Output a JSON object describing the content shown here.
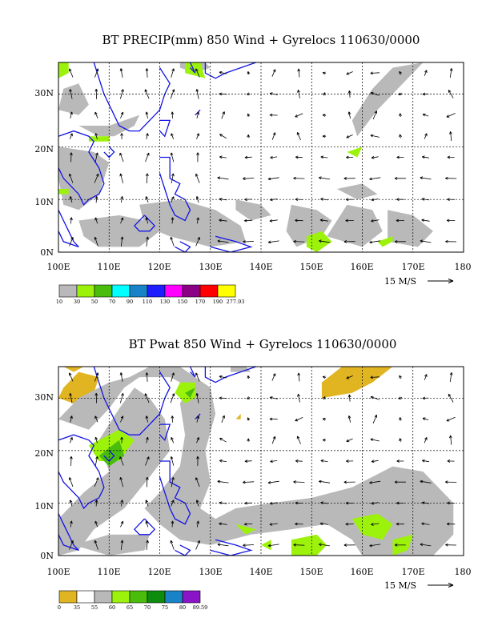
{
  "panels": [
    {
      "id": "precip",
      "title": "BT PRECIP(mm) 850 Wind + Gyrelocs 110630/0000",
      "x_ticks": [
        "100E",
        "110E",
        "120E",
        "130E",
        "140E",
        "150E",
        "160E",
        "170E",
        "180"
      ],
      "y_ticks": [
        "0N",
        "10N",
        "20N",
        "30N"
      ],
      "extent": {
        "lon": [
          100,
          180
        ],
        "lat": [
          0,
          36
        ]
      },
      "vector_ref": "15 M/S",
      "colorbar": {
        "colors": [
          "#b9b9b9",
          "#9df20b",
          "#49bc0c",
          "#00ffff",
          "#1a83c8",
          "#1e1eff",
          "#ff00ff",
          "#8b0085",
          "#ff0000",
          "#ffff00"
        ],
        "labels": [
          "10",
          "30",
          "50",
          "70",
          "90",
          "110",
          "130",
          "150",
          "170",
          "190",
          "277.93"
        ]
      },
      "shaded_regions": [
        {
          "fill": "#b9b9b9",
          "lonlat": [
            [
              100,
              27
            ],
            [
              104,
              26
            ],
            [
              106,
              28
            ],
            [
              104,
              32
            ],
            [
              101,
              31
            ]
          ]
        },
        {
          "fill": "#b9b9b9",
          "lonlat": [
            [
              102,
              25
            ],
            [
              108,
              22
            ],
            [
              111,
              22
            ],
            [
              115,
              24
            ],
            [
              116,
              26
            ],
            [
              110,
              24
            ],
            [
              104,
              24
            ]
          ]
        },
        {
          "fill": "#b9b9b9",
          "lonlat": [
            [
              100,
              20
            ],
            [
              107,
              19
            ],
            [
              110,
              17
            ],
            [
              108,
              11
            ],
            [
              104,
              8
            ],
            [
              101,
              9
            ],
            [
              100,
              14
            ]
          ]
        },
        {
          "fill": "#b9b9b9",
          "lonlat": [
            [
              104,
              6
            ],
            [
              112,
              7
            ],
            [
              117,
              6
            ],
            [
              120,
              4
            ],
            [
              116,
              1
            ],
            [
              108,
              1
            ],
            [
              105,
              3
            ]
          ]
        },
        {
          "fill": "#b9b9b9",
          "lonlat": [
            [
              116,
              9
            ],
            [
              124,
              10
            ],
            [
              131,
              8
            ],
            [
              136,
              5
            ],
            [
              137,
              2
            ],
            [
              130,
              1
            ],
            [
              122,
              3
            ],
            [
              117,
              5
            ]
          ]
        },
        {
          "fill": "#b9b9b9",
          "lonlat": [
            [
              124,
              35
            ],
            [
              127,
              34
            ],
            [
              130,
              35
            ],
            [
              129,
              36
            ],
            [
              124,
              36
            ]
          ]
        },
        {
          "fill": "#b9b9b9",
          "lonlat": [
            [
              135,
              10
            ],
            [
              140,
              9
            ],
            [
              142,
              7
            ],
            [
              138,
              6
            ],
            [
              135,
              8
            ]
          ]
        },
        {
          "fill": "#b9b9b9",
          "lonlat": [
            [
              146,
              9
            ],
            [
              151,
              8
            ],
            [
              154,
              6
            ],
            [
              152,
              3
            ],
            [
              147,
              1
            ],
            [
              145,
              4
            ]
          ]
        },
        {
          "fill": "#b9b9b9",
          "lonlat": [
            [
              153,
              3
            ],
            [
              160,
              1
            ],
            [
              164,
              4
            ],
            [
              162,
              8
            ],
            [
              157,
              9
            ],
            [
              155,
              6
            ]
          ]
        },
        {
          "fill": "#b9b9b9",
          "lonlat": [
            [
              165,
              8
            ],
            [
              170,
              7
            ],
            [
              174,
              4
            ],
            [
              171,
              1
            ],
            [
              165,
              2
            ]
          ]
        },
        {
          "fill": "#b9b9b9",
          "lonlat": [
            [
              159,
              22
            ],
            [
              163,
              27
            ],
            [
              167,
              31
            ],
            [
              170,
              34
            ],
            [
              172,
              36
            ],
            [
              166,
              35
            ],
            [
              162,
              31
            ],
            [
              158,
              25
            ]
          ]
        },
        {
          "fill": "#b9b9b9",
          "lonlat": [
            [
              155,
              12
            ],
            [
              160,
              13
            ],
            [
              163,
              11
            ],
            [
              159,
              10
            ]
          ]
        },
        {
          "fill": "#9df20b",
          "lonlat": [
            [
              100,
              33
            ],
            [
              102,
              34
            ],
            [
              102,
              36
            ],
            [
              100,
              36
            ]
          ]
        },
        {
          "fill": "#9df20b",
          "lonlat": [
            [
              106,
              21
            ],
            [
              110,
              21
            ],
            [
              110,
              22
            ],
            [
              106,
              22
            ]
          ]
        },
        {
          "fill": "#9df20b",
          "lonlat": [
            [
              125,
              34
            ],
            [
              129,
              33
            ],
            [
              128,
              36
            ],
            [
              125,
              36
            ]
          ]
        },
        {
          "fill": "#9df20b",
          "lonlat": [
            [
              149,
              3
            ],
            [
              152,
              4
            ],
            [
              154,
              2
            ],
            [
              151,
              0
            ],
            [
              149,
              1
            ]
          ]
        },
        {
          "fill": "#9df20b",
          "lonlat": [
            [
              157,
              19
            ],
            [
              160,
              20
            ],
            [
              159,
              18
            ]
          ]
        },
        {
          "fill": "#9df20b",
          "lonlat": [
            [
              163,
              2
            ],
            [
              166,
              3
            ],
            [
              166,
              2
            ],
            [
              164,
              1
            ]
          ]
        },
        {
          "fill": "#9df20b",
          "lonlat": [
            [
              100,
              12
            ],
            [
              102,
              12
            ],
            [
              102,
              11
            ],
            [
              100,
              11
            ]
          ]
        }
      ]
    },
    {
      "id": "pwat",
      "title": "BT Pwat 850 Wind + Gyrelocs 110630/0000",
      "x_ticks": [
        "100E",
        "110E",
        "120E",
        "130E",
        "140E",
        "150E",
        "160E",
        "170E",
        "180"
      ],
      "y_ticks": [
        "0N",
        "10N",
        "20N",
        "30N"
      ],
      "extent": {
        "lon": [
          100,
          180
        ],
        "lat": [
          0,
          36
        ]
      },
      "vector_ref": "15 M/S",
      "colorbar": {
        "colors": [
          "#e1b422",
          "#ffffff",
          "#b9b9b9",
          "#9df20b",
          "#49bc0c",
          "#0d8c0d",
          "#1a83c8",
          "#8a14c8"
        ],
        "labels": [
          "0",
          "35",
          "55",
          "60",
          "65",
          "70",
          "75",
          "80",
          "89.59"
        ]
      },
      "shaded_regions": [
        {
          "fill": "#e1b422",
          "lonlat": [
            [
              100,
              30
            ],
            [
              101,
              32
            ],
            [
              104,
              35
            ],
            [
              108,
              34
            ],
            [
              107,
              31
            ],
            [
              103,
              29
            ]
          ]
        },
        {
          "fill": "#e1b422",
          "lonlat": [
            [
              101,
              36
            ],
            [
              103,
              35
            ],
            [
              105,
              36
            ]
          ]
        },
        {
          "fill": "#e1b422",
          "lonlat": [
            [
              152,
              30
            ],
            [
              158,
              31
            ],
            [
              162,
              33
            ],
            [
              166,
              36
            ],
            [
              156,
              36
            ],
            [
              152,
              33
            ]
          ]
        },
        {
          "fill": "#b9b9b9",
          "lonlat": [
            [
              100,
              26
            ],
            [
              106,
              24
            ],
            [
              110,
              28
            ],
            [
              113,
              32
            ],
            [
              116,
              34
            ],
            [
              122,
              34
            ],
            [
              126,
              32
            ],
            [
              128,
              30
            ],
            [
              127,
              34
            ],
            [
              124,
              36
            ],
            [
              118,
              36
            ],
            [
              114,
              34
            ],
            [
              110,
              33
            ],
            [
              104,
              30
            ]
          ]
        },
        {
          "fill": "#b9b9b9",
          "lonlat": [
            [
              105,
              12
            ],
            [
              110,
              16
            ],
            [
              108,
              22
            ],
            [
              112,
              28
            ],
            [
              115,
              32
            ],
            [
              118,
              30
            ],
            [
              121,
              26
            ],
            [
              122,
              20
            ],
            [
              118,
              15
            ],
            [
              113,
              9
            ],
            [
              107,
              5
            ],
            [
              104,
              1
            ],
            [
              100,
              0
            ],
            [
              100,
              7
            ]
          ]
        },
        {
          "fill": "#b9b9b9",
          "lonlat": [
            [
              127,
              34
            ],
            [
              130,
              32
            ],
            [
              131,
              27
            ],
            [
              129,
              20
            ],
            [
              130,
              14
            ],
            [
              128,
              9
            ],
            [
              131,
              7
            ],
            [
              135,
              9
            ],
            [
              142,
              10
            ],
            [
              150,
              11
            ],
            [
              158,
              13
            ],
            [
              166,
              17
            ],
            [
              172,
              16
            ],
            [
              178,
              10
            ],
            [
              178,
              4
            ],
            [
              174,
              0
            ],
            [
              160,
              0
            ],
            [
              158,
              3
            ],
            [
              153,
              6
            ],
            [
              146,
              5
            ],
            [
              138,
              4
            ],
            [
              130,
              2
            ],
            [
              124,
              3
            ],
            [
              120,
              6
            ],
            [
              117,
              9
            ],
            [
              120,
              12
            ],
            [
              124,
              17
            ],
            [
              125,
              23
            ],
            [
              124,
              29
            ]
          ]
        },
        {
          "fill": "#b9b9b9",
          "lonlat": [
            [
              103,
              2
            ],
            [
              110,
              0
            ],
            [
              117,
              1
            ],
            [
              118,
              4
            ],
            [
              110,
              4
            ]
          ]
        },
        {
          "fill": "#b9b9b9",
          "lonlat": [
            [
              134,
              35
            ],
            [
              138,
              35
            ],
            [
              137,
              36
            ],
            [
              134,
              36
            ]
          ]
        },
        {
          "fill": "#9df20b",
          "lonlat": [
            [
              106,
              21
            ],
            [
              112,
              24
            ],
            [
              115,
              22
            ],
            [
              112,
              18
            ],
            [
              108,
              18
            ]
          ]
        },
        {
          "fill": "#9df20b",
          "lonlat": [
            [
              124,
              33
            ],
            [
              127,
              33
            ],
            [
              127,
              30
            ],
            [
              125,
              29
            ],
            [
              123,
              31
            ]
          ]
        },
        {
          "fill": "#9df20b",
          "lonlat": [
            [
              158,
              7
            ],
            [
              163,
              8
            ],
            [
              166,
              6
            ],
            [
              164,
              3
            ],
            [
              160,
              4
            ]
          ]
        },
        {
          "fill": "#9df20b",
          "lonlat": [
            [
              146,
              3
            ],
            [
              151,
              4
            ],
            [
              153,
              2
            ],
            [
              151,
              0
            ],
            [
              146,
              0
            ]
          ]
        },
        {
          "fill": "#9df20b",
          "lonlat": [
            [
              135,
              6
            ],
            [
              139,
              5
            ],
            [
              137,
              4
            ]
          ]
        },
        {
          "fill": "#9df20b",
          "lonlat": [
            [
              166,
              3
            ],
            [
              170,
              4
            ],
            [
              169,
              1
            ],
            [
              166,
              0
            ]
          ]
        },
        {
          "fill": "#9df20b",
          "lonlat": [
            [
              140,
              2
            ],
            [
              142,
              3
            ],
            [
              142,
              1
            ]
          ]
        },
        {
          "fill": "#49bc0c",
          "lonlat": [
            [
              108,
              19
            ],
            [
              112,
              22
            ],
            [
              113,
              19
            ],
            [
              110,
              17
            ]
          ]
        },
        {
          "fill": "#49bc0c",
          "lonlat": [
            [
              125,
              31
            ],
            [
              127,
              32
            ],
            [
              126,
              30
            ]
          ]
        },
        {
          "fill": "#e1b422",
          "lonlat": [
            [
              135,
              26
            ],
            [
              136,
              27
            ],
            [
              136,
              26
            ]
          ]
        }
      ]
    }
  ]
}
